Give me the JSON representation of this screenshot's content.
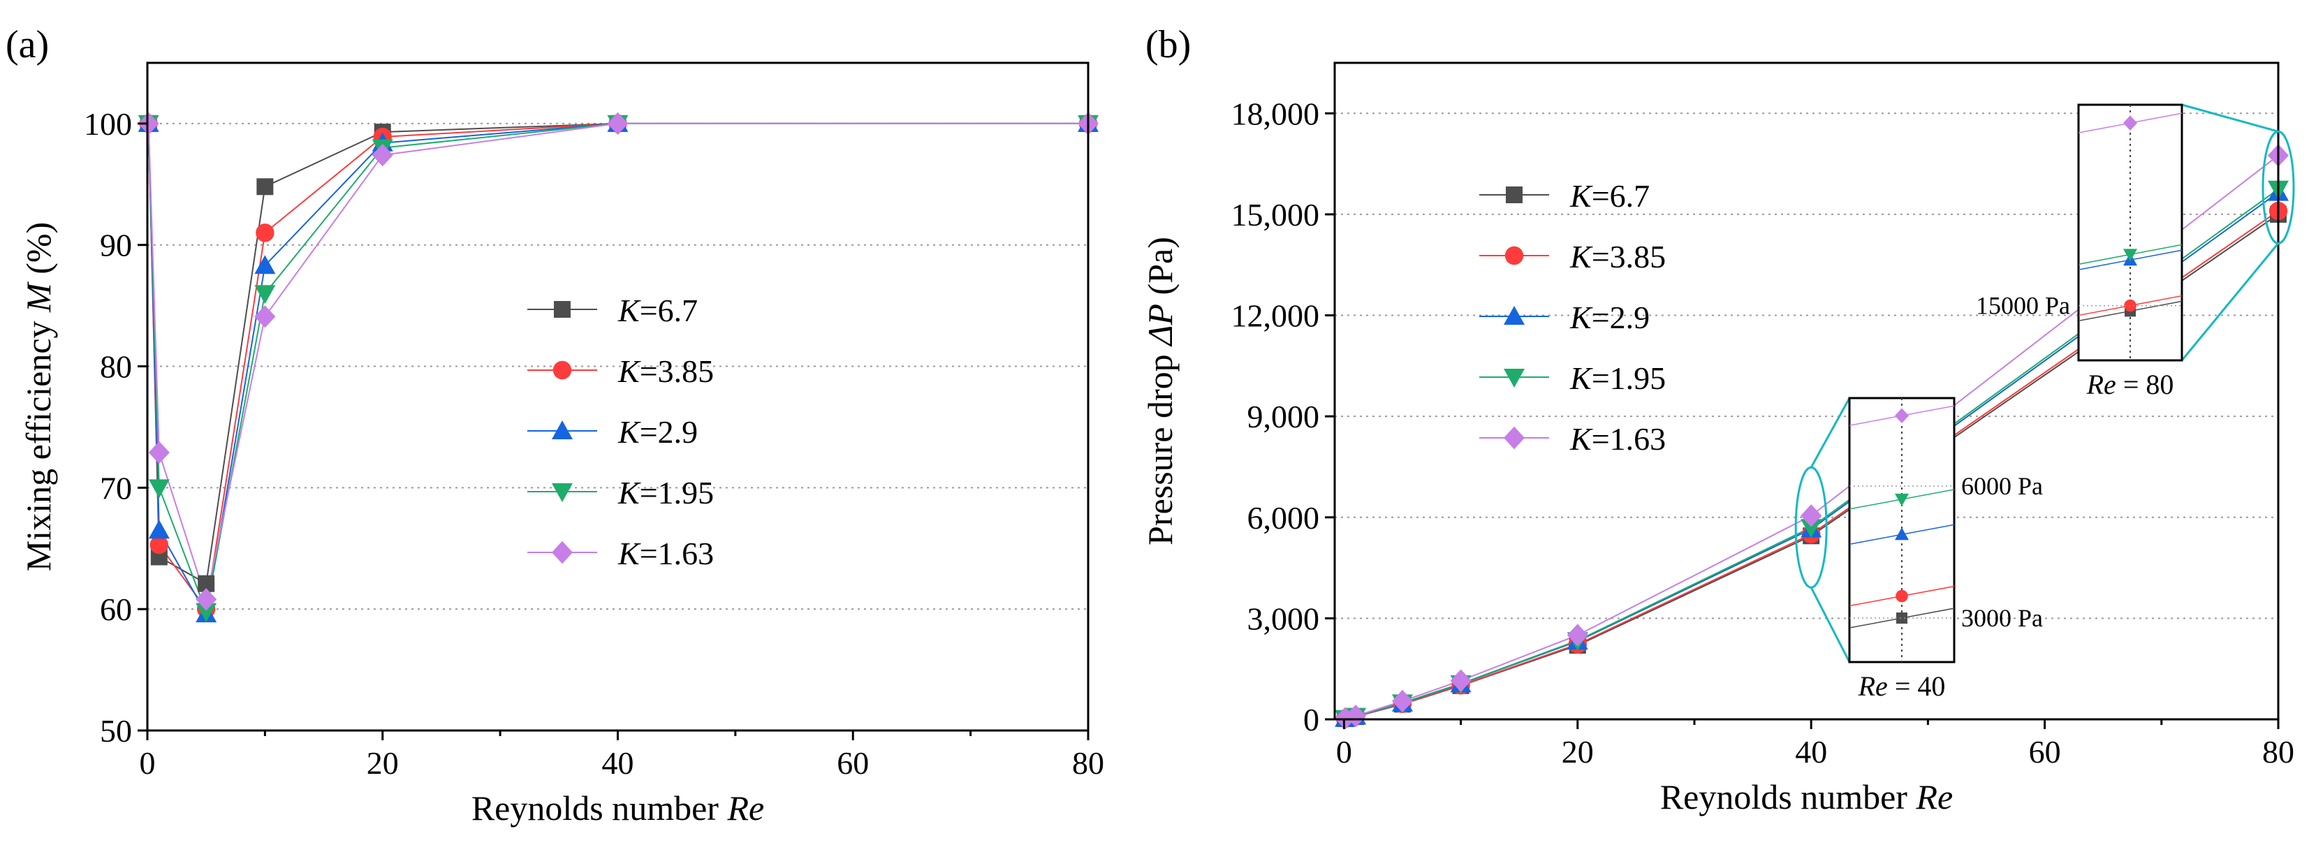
{
  "chart_data": [
    {
      "type": "line",
      "panel_label": "(a)",
      "xlabel_prefix": "Reynolds number ",
      "xlabel_italic": "Re",
      "ylabel_prefix": "Mixing efficiency ",
      "ylabel_italic": "M",
      "ylabel_suffix": " (%)",
      "xlim": [
        0,
        80
      ],
      "ylim": [
        50,
        105
      ],
      "xticks": [
        0,
        20,
        40,
        60,
        80
      ],
      "xtick_labels": [
        "0",
        "20",
        "40",
        "60",
        "80"
      ],
      "yticks": [
        50,
        60,
        70,
        80,
        90,
        100
      ],
      "ytick_labels": [
        "50",
        "60",
        "70",
        "80",
        "90",
        "100"
      ],
      "gridlines_y": [
        60,
        70,
        80,
        90,
        100
      ],
      "legend_position": "center",
      "x": [
        0.1,
        1,
        5,
        10,
        20,
        40,
        80
      ],
      "series": [
        {
          "name": "K=6.7",
          "label_italic": "K",
          "label_rest": "=6.7",
          "color": "#4d4d4d",
          "marker": "square",
          "values": [
            100,
            64.3,
            62.1,
            94.8,
            99.3,
            100,
            100
          ]
        },
        {
          "name": "K=3.85",
          "label_italic": "K",
          "label_rest": "=3.85",
          "color": "#ff3b3b",
          "marker": "circle",
          "values": [
            100,
            65.3,
            60.0,
            91.0,
            98.9,
            100,
            100
          ]
        },
        {
          "name": "K=2.9",
          "label_italic": "K",
          "label_rest": "=2.9",
          "color": "#1565e0",
          "marker": "triangle-up",
          "values": [
            100,
            66.5,
            59.6,
            88.3,
            98.4,
            100,
            100
          ]
        },
        {
          "name": "K=1.95",
          "label_italic": "K",
          "label_rest": "=1.95",
          "color": "#1eac6a",
          "marker": "triangle-down",
          "values": [
            100,
            70.0,
            59.8,
            86.0,
            98.0,
            100,
            100
          ]
        },
        {
          "name": "K=1.63",
          "label_italic": "K",
          "label_rest": "=1.63",
          "color": "#c77ee6",
          "marker": "diamond",
          "values": [
            100,
            72.9,
            60.8,
            84.1,
            97.4,
            100,
            100
          ]
        }
      ]
    },
    {
      "type": "line",
      "panel_label": "(b)",
      "xlabel_prefix": "Reynolds number ",
      "xlabel_italic": "Re",
      "ylabel_prefix": "Pressure drop ",
      "ylabel_italic": "ΔP",
      "ylabel_suffix": " (Pa)",
      "xlim": [
        -0.8,
        80
      ],
      "ylim": [
        0,
        19500
      ],
      "xticks": [
        0,
        20,
        40,
        60,
        80
      ],
      "xtick_labels": [
        "0",
        "20",
        "40",
        "60",
        "80"
      ],
      "yticks": [
        0,
        3000,
        6000,
        9000,
        12000,
        15000,
        18000
      ],
      "ytick_labels": [
        "0",
        "3,000",
        "6,000",
        "9,000",
        "12,000",
        "15,000",
        "18,000"
      ],
      "gridlines_y": [
        3000,
        6000,
        9000,
        12000,
        15000,
        18000
      ],
      "legend_position": "top-left",
      "x": [
        0.1,
        1,
        5,
        10,
        20,
        40,
        80
      ],
      "series": [
        {
          "name": "K=6.7",
          "label_italic": "K",
          "label_rest": "=6.7",
          "color": "#4d4d4d",
          "marker": "square",
          "values": [
            20,
            80,
            450,
            1000,
            2200,
            5450,
            15000
          ]
        },
        {
          "name": "K=3.85",
          "label_italic": "K",
          "label_rest": "=3.85",
          "color": "#ff3b3b",
          "marker": "circle",
          "values": [
            22,
            85,
            460,
            1010,
            2230,
            5500,
            15100
          ]
        },
        {
          "name": "K=2.9",
          "label_italic": "K",
          "label_rest": "=2.9",
          "color": "#1565e0",
          "marker": "triangle-up",
          "values": [
            25,
            90,
            480,
            1050,
            2320,
            5650,
            15650
          ]
        },
        {
          "name": "K=1.95",
          "label_italic": "K",
          "label_rest": "=1.95",
          "color": "#1eac6a",
          "marker": "triangle-down",
          "values": [
            25,
            92,
            490,
            1060,
            2340,
            5700,
            15750
          ]
        },
        {
          "name": "K=1.63",
          "label_italic": "K",
          "label_rest": "=1.63",
          "color": "#c77ee6",
          "marker": "diamond",
          "values": [
            30,
            100,
            540,
            1150,
            2500,
            6050,
            16750
          ]
        }
      ],
      "insets": [
        {
          "name": "inset-re40",
          "caption_italic": "Re",
          "caption_rest": " = 40",
          "at_x": 40,
          "range": [
            2000,
            8000
          ],
          "ref_lines": [
            {
              "value": 6000,
              "label": "6000 Pa"
            },
            {
              "value": 3000,
              "label": "3000 Pa"
            }
          ],
          "values": [
            3000,
            3500,
            4900,
            5700,
            7600
          ]
        },
        {
          "name": "inset-re80",
          "caption_italic": "Re",
          "caption_rest": " = 80",
          "at_x": 80,
          "range": [
            13500,
            20500
          ],
          "ref_lines": [
            {
              "value": 15000,
              "label": "15000 Pa"
            }
          ],
          "values": [
            14850,
            15000,
            16250,
            16400,
            20000
          ]
        }
      ]
    }
  ]
}
